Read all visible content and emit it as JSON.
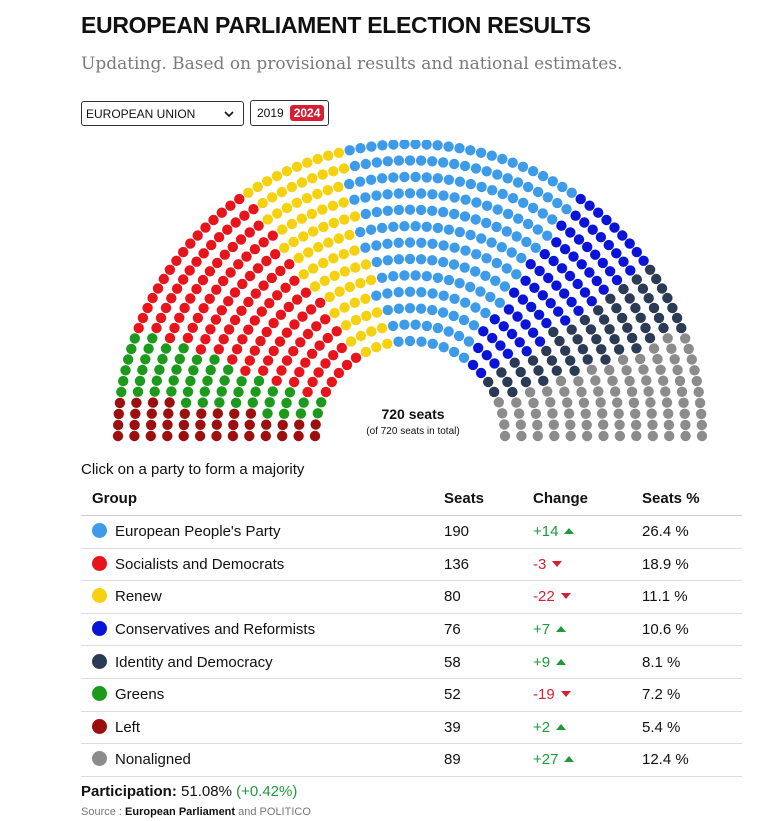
{
  "header": {
    "title": "EUROPEAN PARLIAMENT ELECTION RESULTS",
    "subtitle": "Updating. Based on provisional results and national estimates."
  },
  "controls": {
    "region_select": "EUROPEAN UNION",
    "years": [
      "2019",
      "2024"
    ],
    "active_year": "2024"
  },
  "hemicycle": {
    "seats_label": "720 seats",
    "total_label": "(of 720 seats in total)"
  },
  "hint": "Click on a party to form a majority",
  "table": {
    "headers": {
      "group": "Group",
      "seats": "Seats",
      "change": "Change",
      "pct": "Seats %"
    }
  },
  "chart_data": {
    "type": "hemicycle",
    "total_seats": 720,
    "order": [
      "Left",
      "Greens",
      "Socialists and Democrats",
      "Renew",
      "European People's Party",
      "Conservatives and Reformists",
      "Identity and Democracy",
      "Nonaligned"
    ],
    "parties": [
      {
        "name": "European People's Party",
        "seats": 190,
        "change": "+14",
        "direction": "up",
        "pct": "26.4 %",
        "color": "#3d9be9"
      },
      {
        "name": "Socialists and Democrats",
        "seats": 136,
        "change": "-3",
        "direction": "down",
        "pct": "18.9 %",
        "color": "#e8141c"
      },
      {
        "name": "Renew",
        "seats": 80,
        "change": "-22",
        "direction": "down",
        "pct": "11.1 %",
        "color": "#f5d10f"
      },
      {
        "name": "Conservatives and Reformists",
        "seats": 76,
        "change": "+7",
        "direction": "up",
        "pct": "10.6 %",
        "color": "#0a14d9"
      },
      {
        "name": "Identity and Democracy",
        "seats": 58,
        "change": "+9",
        "direction": "up",
        "pct": "8.1 %",
        "color": "#2b3a55"
      },
      {
        "name": "Greens",
        "seats": 52,
        "change": "-19",
        "direction": "down",
        "pct": "7.2 %",
        "color": "#1b9a1b"
      },
      {
        "name": "Left",
        "seats": 39,
        "change": "+2",
        "direction": "up",
        "pct": "5.4 %",
        "color": "#9b0f0f"
      },
      {
        "name": "Nonaligned",
        "seats": 89,
        "change": "+27",
        "direction": "up",
        "pct": "12.4 %",
        "color": "#8c8c8c"
      }
    ]
  },
  "participation": {
    "label": "Participation:",
    "value": "51.08%",
    "change": "(+0.42%)"
  },
  "source": {
    "prefix": "Source :",
    "org": "European Parliament",
    "suffix": "and POLITICO"
  },
  "colors": {
    "accent": "#d41f34",
    "positive": "#1f9a3a"
  }
}
